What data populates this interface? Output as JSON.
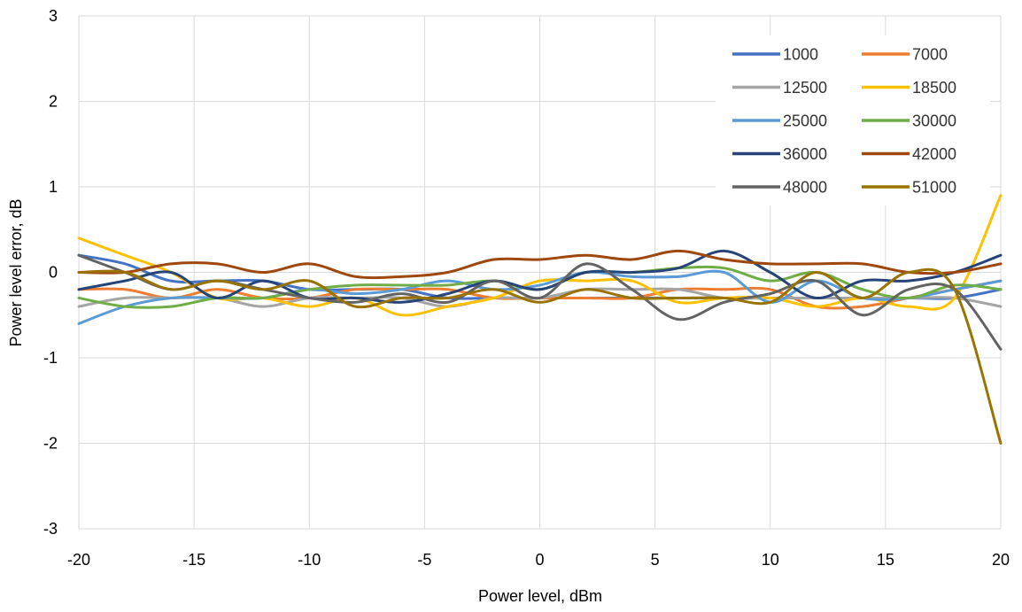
{
  "chart_data": {
    "type": "line",
    "title": "",
    "xlabel": "Power level, dBm",
    "ylabel": "Power level error, dB",
    "xlim": [
      -20,
      20
    ],
    "ylim": [
      -3,
      3
    ],
    "xticks": [
      -20,
      -15,
      -10,
      -5,
      0,
      5,
      10,
      15,
      20
    ],
    "yticks": [
      -3,
      -2,
      -1,
      0,
      1,
      2,
      3
    ],
    "grid": true,
    "legend_position": "top-right",
    "x": [
      -20,
      -18,
      -16,
      -14,
      -12,
      -10,
      -8,
      -6,
      -4,
      -2,
      0,
      2,
      4,
      6,
      8,
      10,
      12,
      14,
      16,
      18,
      20
    ],
    "series": [
      {
        "name": "1000",
        "color": "#4472C4",
        "values": [
          0.2,
          0.1,
          -0.1,
          -0.1,
          -0.1,
          -0.2,
          -0.2,
          -0.2,
          -0.3,
          -0.3,
          -0.3,
          -0.3,
          -0.3,
          -0.3,
          -0.3,
          -0.3,
          -0.3,
          -0.3,
          -0.3,
          -0.3,
          -0.2
        ]
      },
      {
        "name": "7000",
        "color": "#ED7D31",
        "values": [
          -0.2,
          -0.2,
          -0.3,
          -0.2,
          -0.3,
          -0.3,
          -0.2,
          -0.2,
          -0.2,
          -0.3,
          -0.3,
          -0.3,
          -0.3,
          -0.2,
          -0.2,
          -0.2,
          -0.4,
          -0.4,
          -0.3,
          -0.2,
          -0.1
        ]
      },
      {
        "name": "12500",
        "color": "#A5A5A5",
        "values": [
          -0.4,
          -0.3,
          -0.3,
          -0.3,
          -0.4,
          -0.3,
          -0.3,
          -0.3,
          -0.4,
          -0.3,
          -0.3,
          -0.2,
          -0.2,
          -0.2,
          -0.3,
          -0.3,
          -0.3,
          -0.3,
          -0.3,
          -0.3,
          -0.4
        ]
      },
      {
        "name": "18500",
        "color": "#FFC000",
        "values": [
          0.4,
          0.2,
          0.0,
          -0.3,
          -0.3,
          -0.4,
          -0.3,
          -0.5,
          -0.4,
          -0.3,
          -0.1,
          -0.1,
          -0.1,
          -0.35,
          -0.3,
          -0.3,
          -0.4,
          -0.3,
          -0.4,
          -0.3,
          0.9
        ]
      },
      {
        "name": "25000",
        "color": "#5B9BD5",
        "values": [
          -0.6,
          -0.4,
          -0.3,
          -0.3,
          -0.3,
          -0.2,
          -0.25,
          -0.2,
          -0.1,
          -0.2,
          -0.15,
          0.0,
          -0.05,
          -0.05,
          0.0,
          -0.35,
          -0.1,
          -0.3,
          -0.3,
          -0.2,
          -0.1
        ]
      },
      {
        "name": "30000",
        "color": "#70AD47",
        "values": [
          -0.3,
          -0.4,
          -0.4,
          -0.3,
          -0.3,
          -0.2,
          -0.15,
          -0.15,
          -0.15,
          -0.1,
          -0.2,
          0.0,
          0.0,
          0.05,
          0.05,
          -0.1,
          0.0,
          -0.2,
          -0.3,
          -0.15,
          -0.2
        ]
      },
      {
        "name": "36000",
        "color": "#264478",
        "values": [
          -0.2,
          -0.1,
          0.0,
          -0.3,
          -0.1,
          -0.3,
          -0.3,
          -0.35,
          -0.25,
          -0.1,
          -0.2,
          0.0,
          0.0,
          0.05,
          0.25,
          0.0,
          -0.3,
          -0.1,
          -0.1,
          0.0,
          0.2
        ]
      },
      {
        "name": "42000",
        "color": "#9E480E",
        "values": [
          0.0,
          0.0,
          0.1,
          0.1,
          0.0,
          0.1,
          -0.05,
          -0.05,
          0.0,
          0.15,
          0.15,
          0.2,
          0.15,
          0.25,
          0.15,
          0.1,
          0.1,
          0.1,
          0.0,
          0.0,
          0.1
        ]
      },
      {
        "name": "48000",
        "color": "#636363",
        "values": [
          0.2,
          0.0,
          -0.2,
          -0.1,
          -0.2,
          -0.3,
          -0.35,
          -0.25,
          -0.35,
          -0.1,
          -0.3,
          0.1,
          -0.2,
          -0.55,
          -0.35,
          -0.25,
          -0.1,
          -0.5,
          -0.2,
          -0.2,
          -0.9
        ]
      },
      {
        "name": "51000",
        "color": "#997300",
        "values": [
          0.0,
          0.0,
          -0.2,
          -0.1,
          -0.2,
          -0.1,
          -0.4,
          -0.3,
          -0.3,
          -0.2,
          -0.35,
          -0.2,
          -0.3,
          -0.3,
          -0.3,
          -0.35,
          0.0,
          -0.3,
          0.0,
          -0.2,
          -2.0
        ]
      }
    ]
  }
}
